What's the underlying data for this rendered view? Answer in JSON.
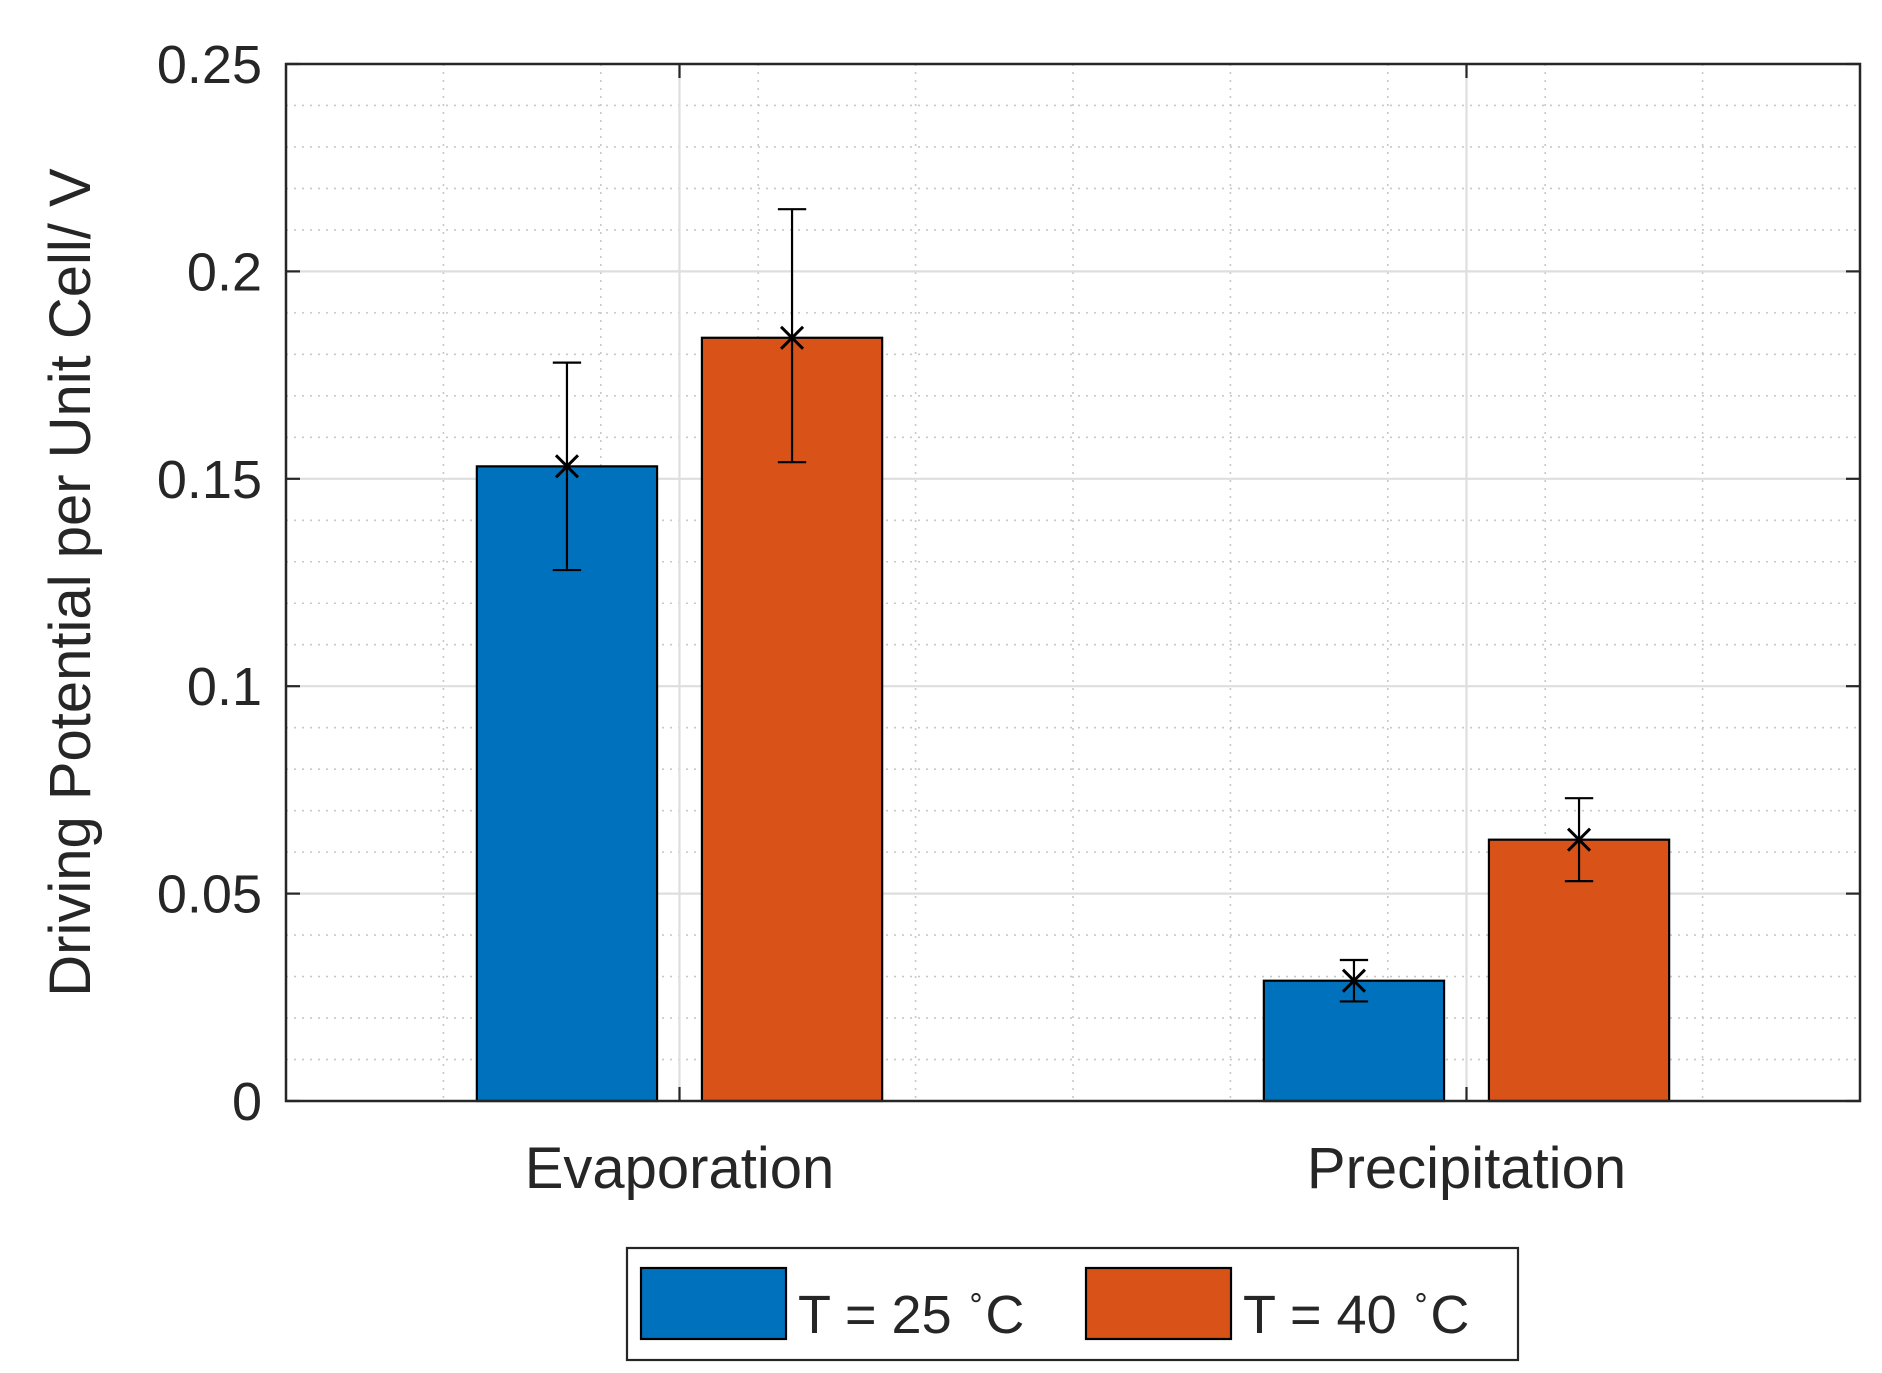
{
  "chart_data": {
    "type": "bar",
    "title": "",
    "xlabel": "",
    "ylabel": "Driving Potential per Unit Cell/ V",
    "categories": [
      "Evaporation",
      "Precipitation"
    ],
    "ylim": [
      0,
      0.25
    ],
    "yticks": [
      0,
      0.05,
      0.1,
      0.15,
      0.2,
      0.25
    ],
    "ytick_labels": [
      "0",
      "0.05",
      "0.1",
      "0.15",
      "0.2",
      "0.25"
    ],
    "grid": true,
    "minor_grid": true,
    "legend_position": "bottom-center",
    "legend_orientation": "horizontal",
    "series": [
      {
        "name": "T = 25 °C",
        "label_text": "T = 25",
        "unit_sup": "∘",
        "unit": "C",
        "color": "#0072BD",
        "values": [
          0.153,
          0.029
        ],
        "error_low": [
          0.128,
          0.024
        ],
        "error_high": [
          0.178,
          0.034
        ],
        "markers": [
          0.153,
          0.029
        ]
      },
      {
        "name": "T = 40 °C",
        "label_text": "T = 40",
        "unit_sup": "∘",
        "unit": "C",
        "color": "#D95319",
        "values": [
          0.184,
          0.063
        ],
        "error_low": [
          0.154,
          0.053
        ],
        "error_high": [
          0.215,
          0.073
        ],
        "markers": [
          0.184,
          0.063
        ]
      }
    ]
  }
}
